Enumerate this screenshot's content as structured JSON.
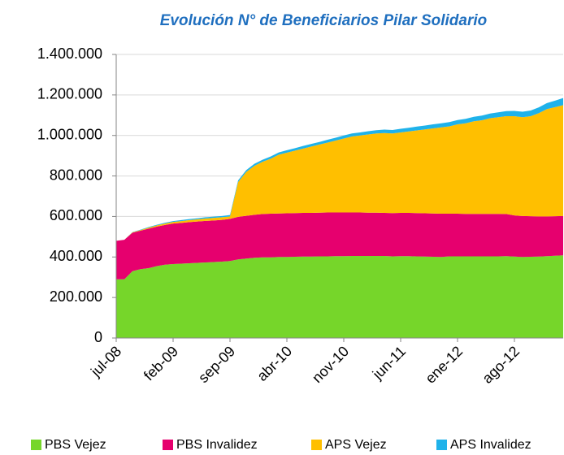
{
  "chart_data": {
    "type": "stacked-area",
    "title": "Evolución N° de Beneficiarios Pilar Solidario",
    "categories": [
      "jul-08",
      null,
      null,
      null,
      null,
      null,
      null,
      "feb-09",
      null,
      null,
      null,
      null,
      null,
      null,
      "sep-09",
      null,
      null,
      null,
      null,
      null,
      null,
      "abr-10",
      null,
      null,
      null,
      null,
      null,
      null,
      "nov-10",
      null,
      null,
      null,
      null,
      null,
      null,
      "jun-11",
      null,
      null,
      null,
      null,
      null,
      null,
      "ene-12",
      null,
      null,
      null,
      null,
      null,
      null,
      "ago-12",
      null,
      null,
      null,
      null,
      null,
      null
    ],
    "series": [
      {
        "name": "PBS Vejez",
        "color": "#76d62a",
        "values": [
          290000,
          290000,
          330000,
          340000,
          345000,
          355000,
          362000,
          365000,
          367000,
          369000,
          371000,
          373000,
          375000,
          377000,
          380000,
          388000,
          392000,
          396000,
          398000,
          398000,
          400000,
          400000,
          401000,
          402000,
          402000,
          403000,
          403000,
          404000,
          404000,
          405000,
          405000,
          405000,
          405000,
          405000,
          403000,
          404000,
          404000,
          403000,
          402000,
          401000,
          400000,
          403000,
          403000,
          403000,
          403000,
          403000,
          403000,
          403000,
          404000,
          402000,
          400000,
          401000,
          402000,
          404000,
          406000,
          408000
        ]
      },
      {
        "name": "PBS Invalidez",
        "color": "#e6006e",
        "values": [
          190000,
          195000,
          190000,
          190000,
          195000,
          195000,
          196000,
          200000,
          201000,
          203000,
          204000,
          205000,
          205000,
          206000,
          208000,
          210000,
          211000,
          212000,
          214000,
          216000,
          215000,
          216000,
          216000,
          216000,
          216000,
          216000,
          217000,
          216000,
          216000,
          215000,
          215000,
          214000,
          214000,
          213000,
          214000,
          214000,
          214000,
          214000,
          214000,
          214000,
          214000,
          211000,
          211000,
          210000,
          210000,
          210000,
          210000,
          210000,
          208000,
          203000,
          202000,
          200000,
          198000,
          196000,
          195000,
          194000
        ]
      },
      {
        "name": "APS Vejez",
        "color": "#ffbf00",
        "values": [
          0,
          0,
          2000,
          3000,
          5000,
          6000,
          7000,
          8000,
          9000,
          10000,
          11000,
          12000,
          13000,
          13000,
          12000,
          172000,
          217000,
          242000,
          258000,
          271000,
          290000,
          299000,
          308000,
          317000,
          327000,
          336000,
          345000,
          355000,
          365000,
          375000,
          380000,
          386000,
          391000,
          394000,
          393000,
          397000,
          402000,
          408000,
          414000,
          420000,
          426000,
          431000,
          441000,
          447000,
          457000,
          462000,
          472000,
          477000,
          483000,
          490000,
          488000,
          494000,
          510000,
          530000,
          539000,
          548000
        ]
      },
      {
        "name": "APS Invalidez",
        "color": "#1fb2ea",
        "values": [
          0,
          0,
          1000,
          2000,
          3000,
          3000,
          4000,
          4000,
          5000,
          5000,
          5000,
          6000,
          6000,
          6000,
          7000,
          8000,
          9000,
          10000,
          10000,
          11000,
          11000,
          12000,
          12000,
          13000,
          13000,
          13000,
          14000,
          14000,
          15000,
          15000,
          15000,
          16000,
          16000,
          17000,
          17000,
          18000,
          18000,
          19000,
          19000,
          20000,
          20000,
          21000,
          21000,
          22000,
          22000,
          23000,
          23000,
          24000,
          25000,
          26000,
          27000,
          28000,
          29000,
          30000,
          32000,
          35000
        ]
      }
    ],
    "ylim": [
      0,
      1400000
    ],
    "yticks": [
      0,
      {
        "value": 200000,
        "label": "200.000"
      },
      {
        "value": 400000,
        "label": "400.000"
      },
      {
        "value": 600000,
        "label": "600.000"
      },
      {
        "value": 800000,
        "label": "800.000"
      },
      {
        "value": 1000000,
        "label": "1.000.000"
      },
      {
        "value": 1200000,
        "label": "1.200.000"
      },
      {
        "value": 1400000,
        "label": "1.400.000"
      }
    ],
    "grid": true,
    "legend": "bottom"
  }
}
